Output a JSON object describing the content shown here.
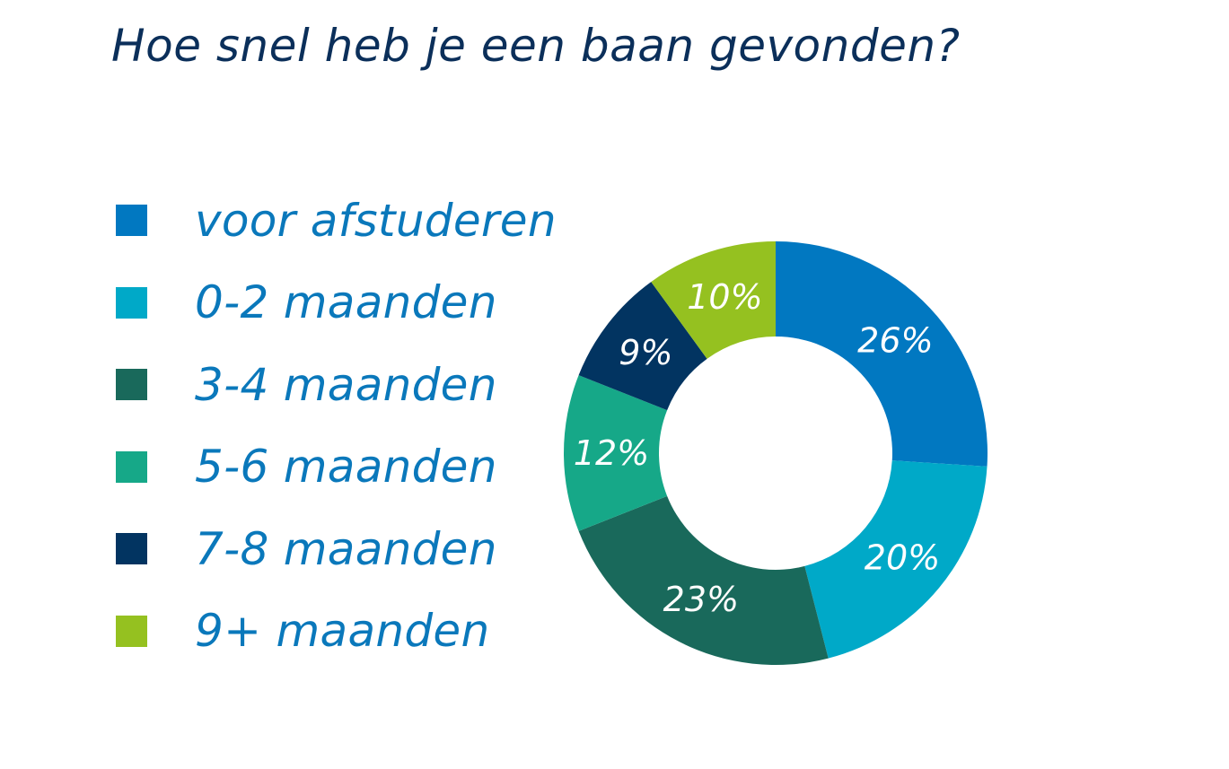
{
  "chart_data": {
    "type": "pie",
    "title": "Hoe snel heb je een baan gevonden?",
    "categories": [
      "voor afstuderen",
      "0-2 maanden",
      "3-4 maanden",
      "5-6 maanden",
      "7-8 maanden",
      "9+ maanden"
    ],
    "values": [
      26,
      20,
      23,
      12,
      9,
      10
    ],
    "value_labels": [
      "26%",
      "20%",
      "23%",
      "12%",
      "9%",
      "10%"
    ],
    "colors": [
      "#0178c1",
      "#00a9c8",
      "#19695b",
      "#16a888",
      "#023461",
      "#95c120"
    ],
    "donut": true,
    "legend_placement": "left"
  },
  "styles": {
    "title_color": "#0b2f5a",
    "legend_text_color": "#0a78bb"
  }
}
